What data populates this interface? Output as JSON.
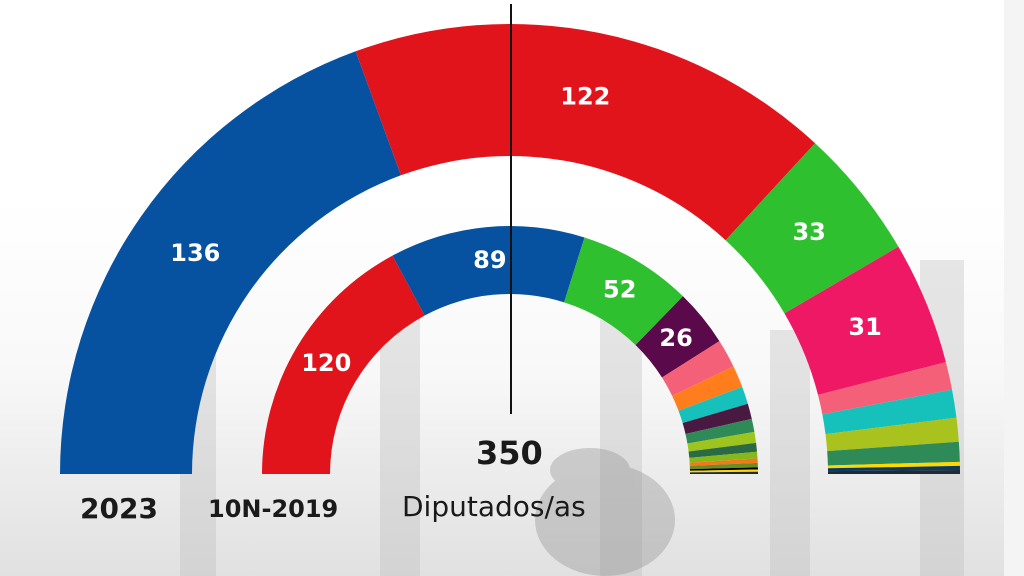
{
  "chart_data": {
    "type": "pie",
    "variant": "double-hemicycle",
    "total_label": "350",
    "unit_label": "Diputados/as",
    "series": [
      {
        "name": "2023",
        "slices": [
          {
            "value": 136,
            "label": "136",
            "color": "#0652a1"
          },
          {
            "value": 122,
            "label": "122",
            "color": "#e1141c"
          },
          {
            "value": 33,
            "label": "33",
            "color": "#2fc02f"
          },
          {
            "value": 31,
            "label": "31",
            "color": "#ef1865"
          },
          {
            "value": 7,
            "label": "",
            "color": "#f56079"
          },
          {
            "value": 7,
            "label": "",
            "color": "#17c1bb"
          },
          {
            "value": 6,
            "label": "",
            "color": "#a9c21e"
          },
          {
            "value": 5,
            "label": "",
            "color": "#2e8b57"
          },
          {
            "value": 1,
            "label": "",
            "color": "#ffd800"
          },
          {
            "value": 1,
            "label": "",
            "color": "#0b3a5e"
          },
          {
            "value": 1,
            "label": "",
            "color": "#1f2a37"
          }
        ]
      },
      {
        "name": "10N-2019",
        "slices": [
          {
            "value": 120,
            "label": "120",
            "color": "#e1141c"
          },
          {
            "value": 89,
            "label": "89",
            "color": "#0652a1"
          },
          {
            "value": 52,
            "label": "52",
            "color": "#2fc02f"
          },
          {
            "value": 26,
            "label": "26",
            "color": "#5a0a4a"
          },
          {
            "value": 13,
            "label": "",
            "color": "#f56079"
          },
          {
            "value": 10,
            "label": "",
            "color": "#ff7d1c"
          },
          {
            "value": 8,
            "label": "",
            "color": "#17c1bb"
          },
          {
            "value": 7,
            "label": "",
            "color": "#4a1942"
          },
          {
            "value": 6,
            "label": "",
            "color": "#2e8b57"
          },
          {
            "value": 5,
            "label": "",
            "color": "#9ec51e"
          },
          {
            "value": 4,
            "label": "",
            "color": "#2a6a44"
          },
          {
            "value": 3,
            "label": "",
            "color": "#86b81a"
          },
          {
            "value": 2,
            "label": "",
            "color": "#f07a1a"
          },
          {
            "value": 2,
            "label": "",
            "color": "#6b8e23"
          },
          {
            "value": 1,
            "label": "",
            "color": "#000000"
          },
          {
            "value": 1,
            "label": "",
            "color": "#ffd800"
          },
          {
            "value": 1,
            "label": "",
            "color": "#1f2a37"
          }
        ]
      }
    ]
  }
}
